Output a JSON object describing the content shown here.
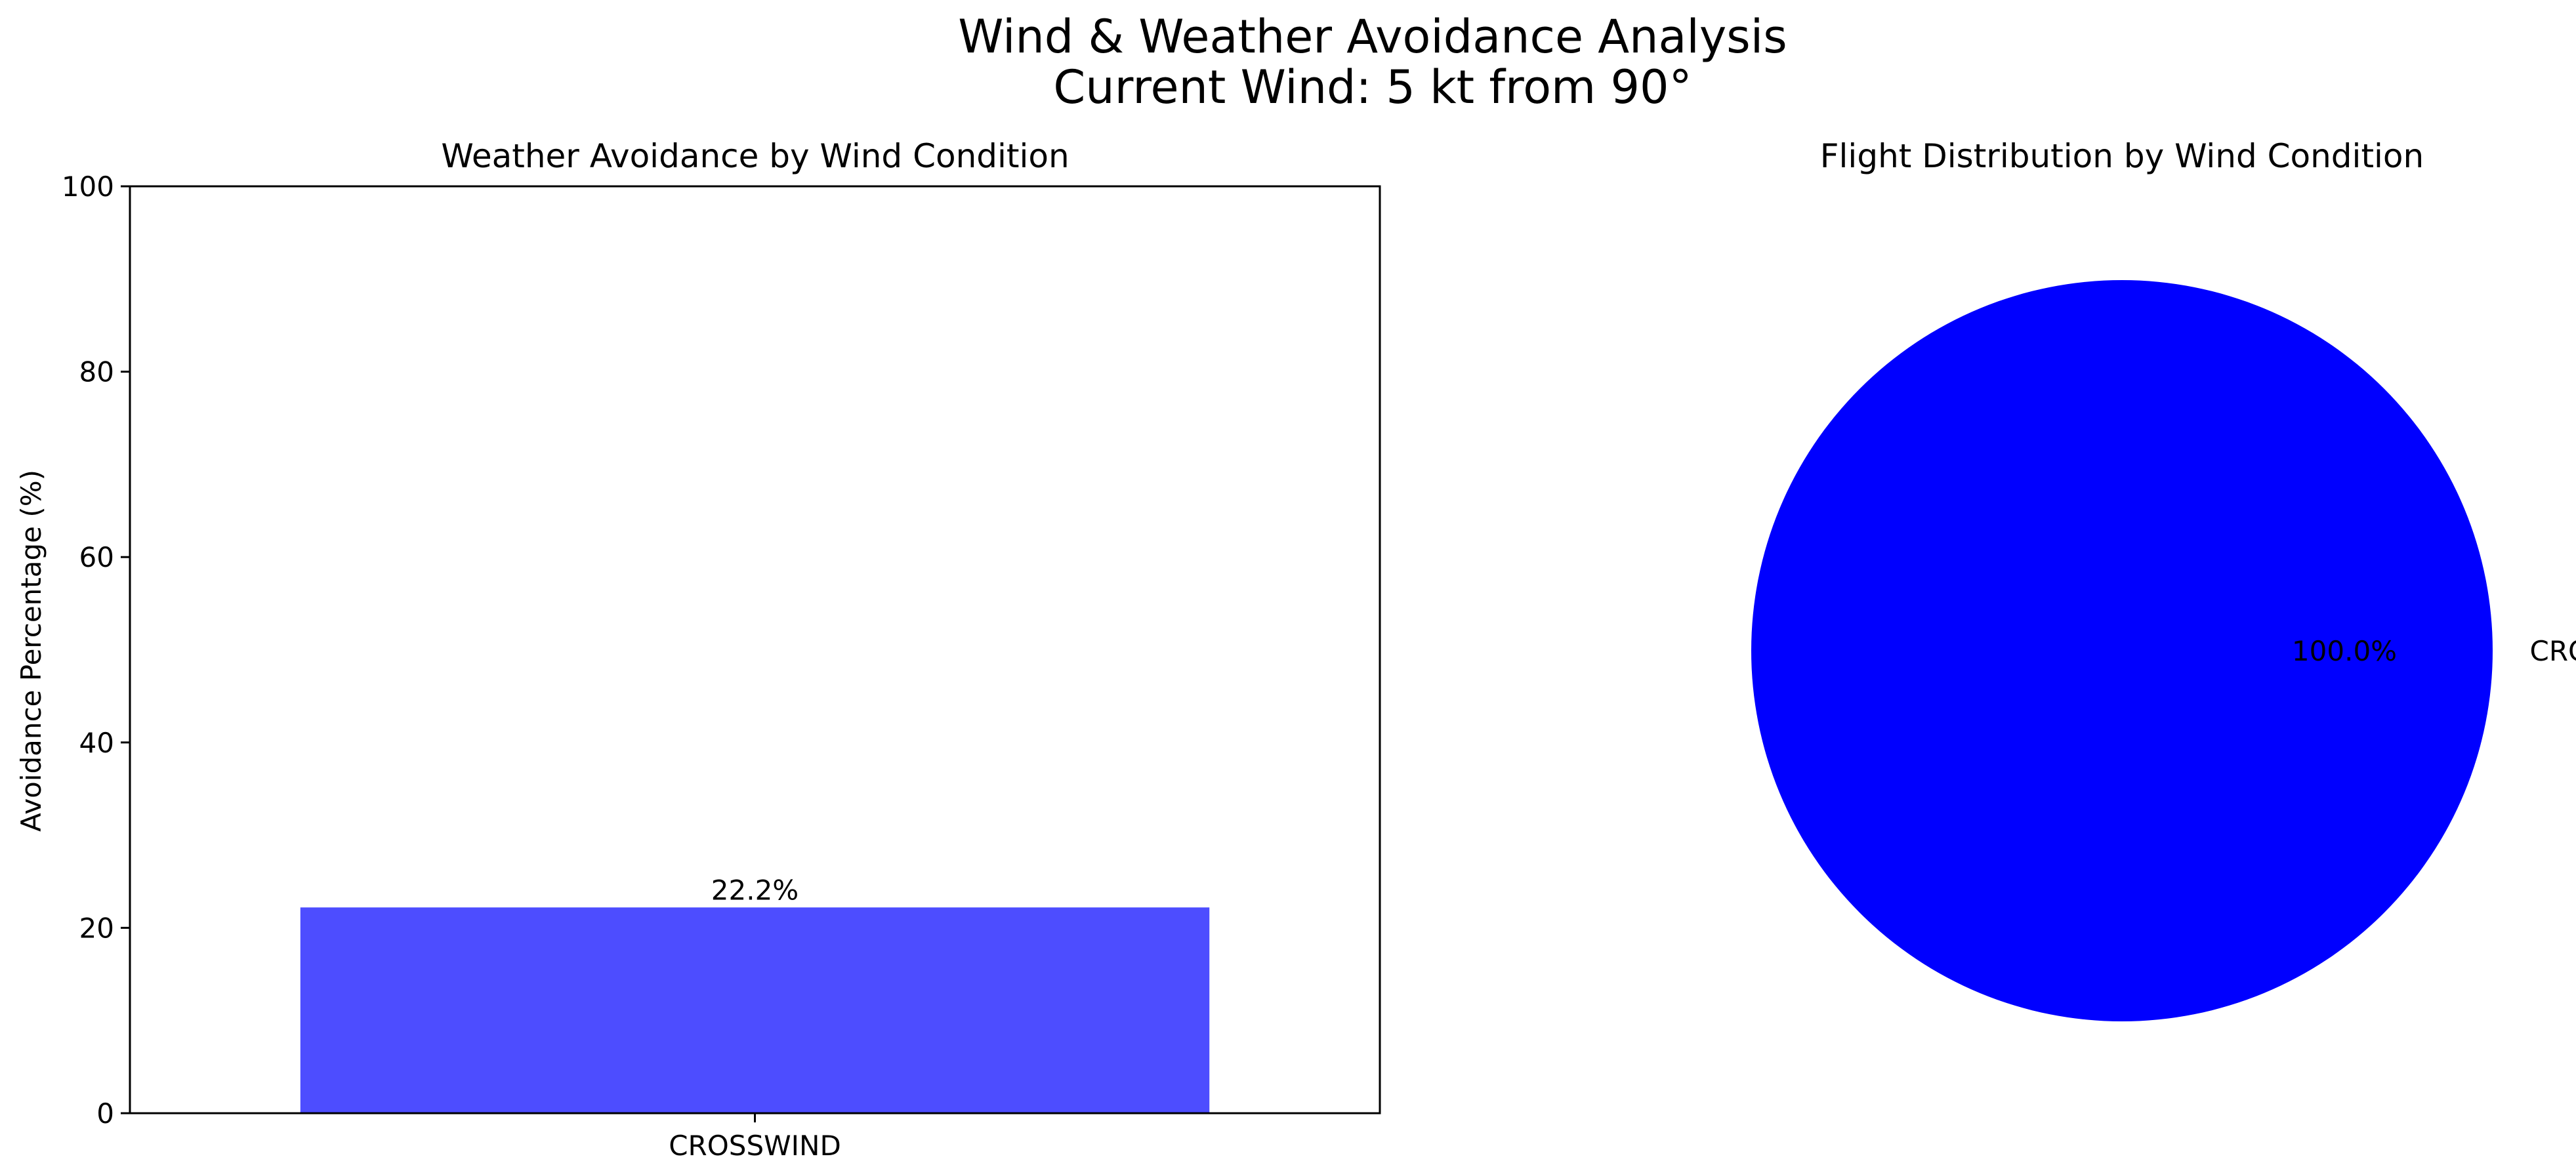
{
  "figure": {
    "title_line1": "Wind & Weather Avoidance Analysis",
    "title_line2": "Current Wind: 5 kt from 90°"
  },
  "chart_data": [
    {
      "type": "bar",
      "title": "Weather Avoidance by Wind Condition",
      "xlabel": "",
      "ylabel": "Avoidance Percentage (%)",
      "categories": [
        "CROSSWIND"
      ],
      "values": [
        22.2
      ],
      "data_labels": [
        "22.2%"
      ],
      "ylim": [
        0,
        100
      ],
      "yticks": [
        0,
        20,
        40,
        60,
        80,
        100
      ],
      "grid": false,
      "bar_color": "#4d4dff"
    },
    {
      "type": "pie",
      "title": "Flight Distribution by Wind Condition",
      "labels": [
        "CROSSWIND"
      ],
      "values": [
        100.0
      ],
      "pct_labels": [
        "100.0%"
      ],
      "colors": [
        "#0000ff"
      ]
    }
  ]
}
